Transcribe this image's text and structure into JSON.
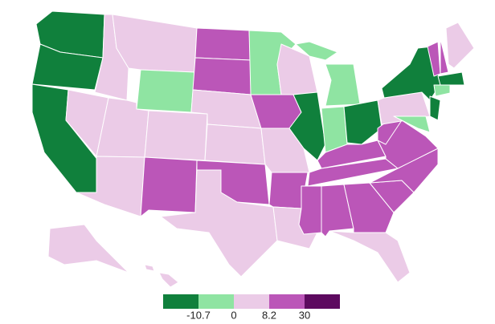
{
  "legend": {
    "colors": [
      "#10803c",
      "#8fe4a2",
      "#ebcbe7",
      "#bb56b8",
      "#5d0a5f"
    ],
    "breaks": [
      -10.7,
      0,
      8.2,
      30
    ]
  }
}
